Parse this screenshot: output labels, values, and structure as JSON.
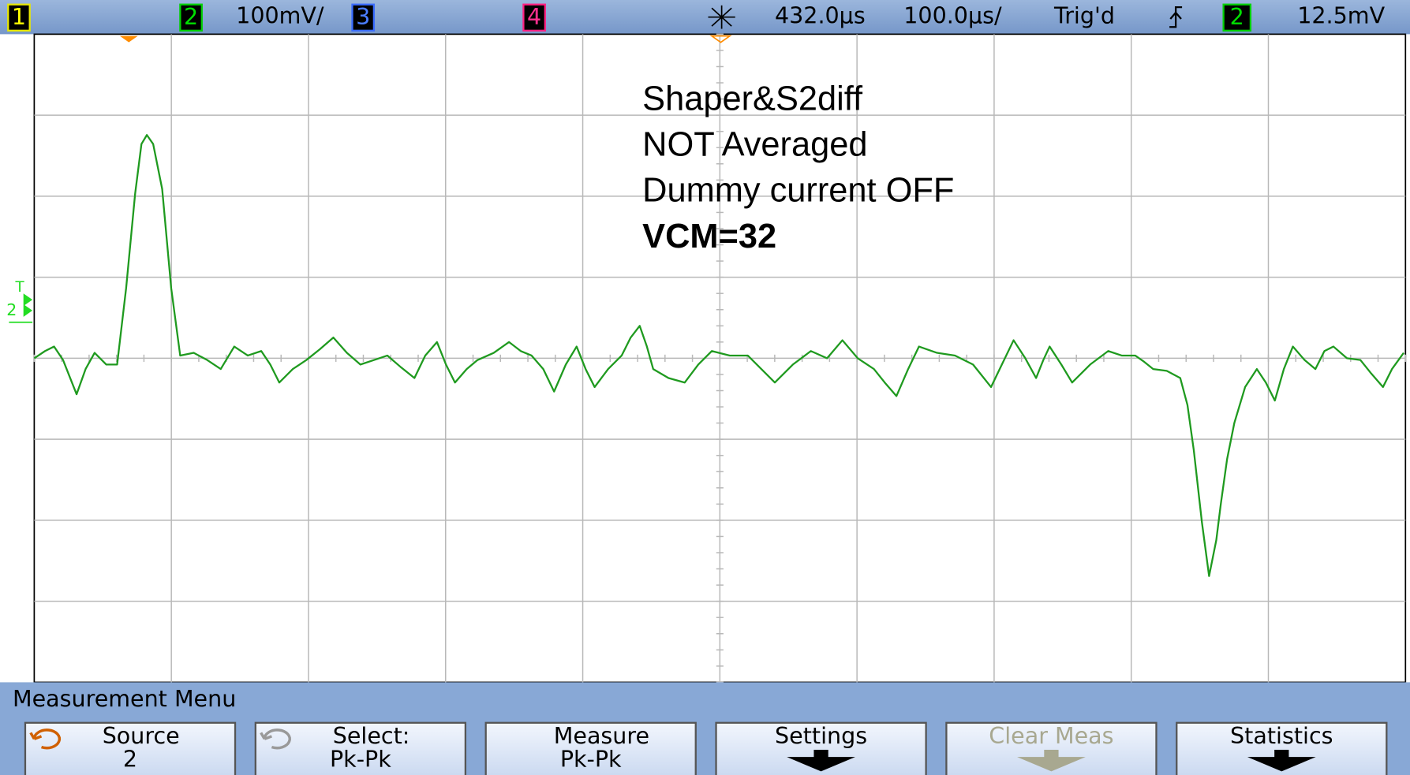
{
  "top_bar": {
    "channel_1": "1",
    "channel_2": "2",
    "channel_2_scale": "100mV/",
    "channel_3": "3",
    "channel_4": "4",
    "time_delay": "432.0µs",
    "time_scale": "100.0µs/",
    "trigger_status": "Trig'd",
    "trigger_source": "2",
    "trigger_level": "12.5mV"
  },
  "marker": {
    "trigger_label": "T",
    "ground_label": "2"
  },
  "annotation": {
    "lines": [
      "Shaper&S2diff",
      "NOT Averaged",
      "Dummy current OFF",
      "VCM=32"
    ]
  },
  "menu": {
    "title": "Measurement Menu",
    "buttons": [
      {
        "line1": "Source",
        "line2": "2"
      },
      {
        "line1": "Select:",
        "line2": "Pk-Pk"
      },
      {
        "line1": "Measure",
        "line2": "Pk-Pk"
      },
      {
        "label": "Settings"
      },
      {
        "label": "Clear Meas"
      },
      {
        "label": "Statistics"
      }
    ]
  }
}
